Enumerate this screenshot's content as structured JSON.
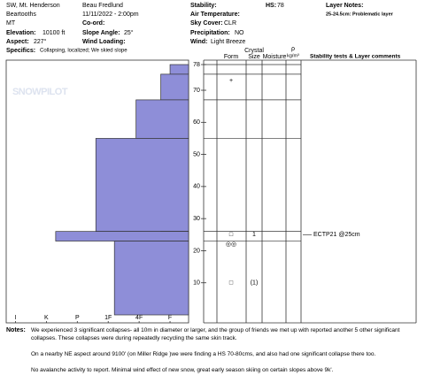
{
  "header": {
    "location": "SW, Mt. Henderson",
    "range": "Beartooths",
    "state": "MT",
    "observer": "Beau  Fredlund",
    "datetime": "11/11/2022 - 2:00pm",
    "coord_label": "Co-ord:",
    "elevation_label": "Elevation:",
    "elevation": "10100 ft",
    "slope_label": "Slope Angle:",
    "slope": "25°",
    "aspect_label": "Aspect:",
    "aspect": "227°",
    "wind_loading_label": "Wind Loading:",
    "specifics_label": "Specifics:",
    "specifics": "Collapsing, localized; We skied slope"
  },
  "conditions": {
    "stability_label": "Stability:",
    "hs_label": "HS:",
    "hs": 78,
    "air_temp_label": "Air Temperature:",
    "sky_label": "Sky Cover:",
    "sky": "CLR",
    "precip_label": "Precipitation:",
    "precip": "NO",
    "wind_label": "Wind:",
    "wind": "Light Breeze"
  },
  "layer_notes": {
    "title": "Layer Notes:",
    "items": [
      "25-24.5cm: Problematic layer"
    ]
  },
  "columns": {
    "form": "Form",
    "crystal": "Crystal",
    "size": "Size",
    "moisture": "Moisture",
    "rho": "ρ",
    "density": "kg/m³",
    "comments": "Stability tests & Layer comments"
  },
  "watermark": "SNOWPILOT",
  "chart_data": {
    "type": "profile",
    "depth_top": [
      78,
      75,
      67,
      55,
      26,
      26,
      23
    ],
    "depth_bottom": [
      75,
      67,
      55,
      26,
      25,
      23,
      0
    ],
    "values": [
      1,
      1.3,
      2.1,
      3.4,
      1.3,
      4.7,
      2.8
    ],
    "color": "#8e8ed8",
    "ylim": [
      0,
      78
    ],
    "yticks": [
      10,
      20,
      30,
      40,
      50,
      60,
      70,
      78
    ],
    "xlim": [
      6.3,
      0.4
    ],
    "xticks": [
      {
        "value": 6,
        "label": "I"
      },
      {
        "value": 5,
        "label": "K"
      },
      {
        "value": 4,
        "label": "P"
      },
      {
        "value": 3,
        "label": "1F"
      },
      {
        "value": 2,
        "label": "4F"
      },
      {
        "value": 1,
        "label": "F"
      }
    ],
    "observations": [
      {
        "depth": 73,
        "form": "+"
      },
      {
        "depth": 25,
        "form": "□",
        "size": "1",
        "comment": "ECTP21 @25cm"
      },
      {
        "depth": 22,
        "form": "◎◎"
      },
      {
        "depth": 10,
        "form": "□",
        "size": "(1)"
      }
    ]
  },
  "notes": {
    "title": "Notes:",
    "paragraphs": [
      "We experienced 3 significant collapses- all 10m in diameter or larger, and the group of friends we met up with reported another 5 other significant collapses.  These collapses were during repeatedly recycling the same skin track.",
      "On a nearby NE aspect around 9100' (on Miller Ridge )we were finding a HS 70-80cms, and also had one significant collapse there too.",
      "No avalanche activity to report.  Minimal wind effect of new snow, great early season skiing on certain slopes above 9k'."
    ]
  }
}
